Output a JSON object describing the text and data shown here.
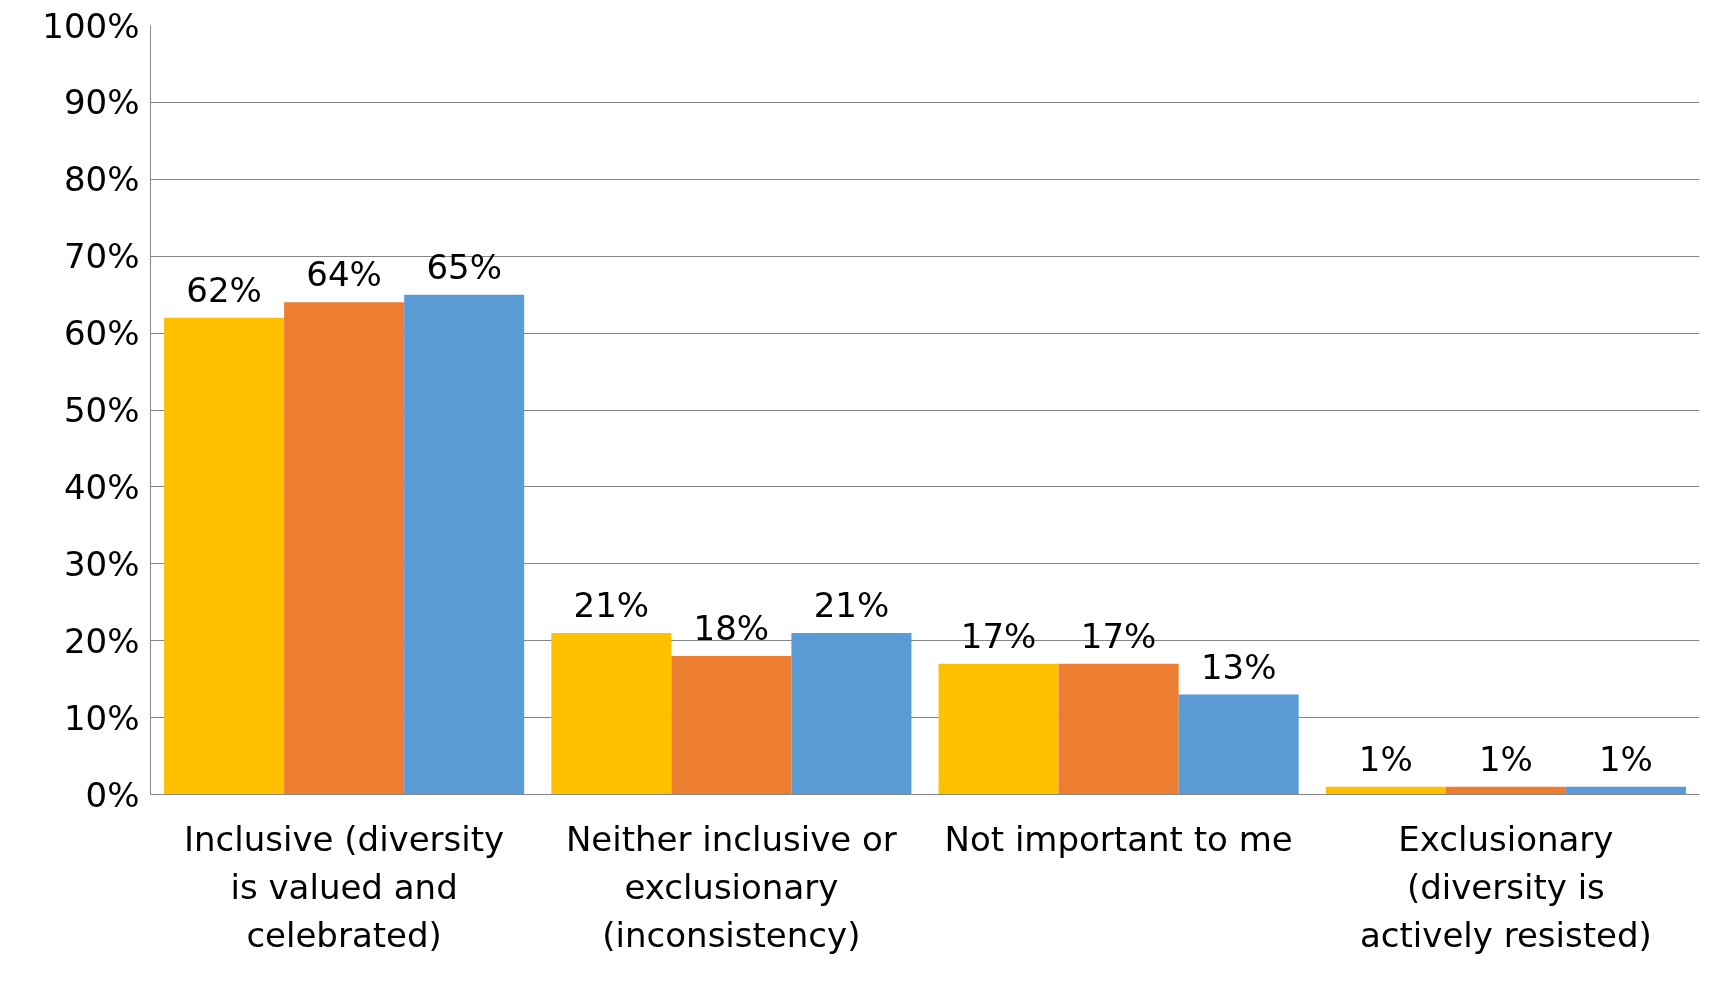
{
  "chart_data": {
    "type": "bar",
    "categories": [
      "Inclusive (diversity is valued and celebrated)",
      "Neither inclusive or exclusionary (inconsistency)",
      "Not important to me",
      "Exclusionary (diversity is actively resisted)"
    ],
    "series": [
      {
        "color": "#ffc000",
        "values": [
          62,
          21,
          17,
          1
        ],
        "value_labels": [
          "62%",
          "21%",
          "17%",
          "1%"
        ]
      },
      {
        "color": "#ed7d31",
        "values": [
          64,
          18,
          17,
          1
        ],
        "value_labels": [
          "64%",
          "18%",
          "17%",
          "1%"
        ]
      },
      {
        "color": "#5b9bd5",
        "values": [
          65,
          21,
          13,
          1
        ],
        "value_labels": [
          "65%",
          "21%",
          "13%",
          "1%"
        ]
      }
    ],
    "ylim": [
      0,
      100
    ],
    "yticks": [
      {
        "value": 0,
        "label": "0%"
      },
      {
        "value": 10,
        "label": "10%"
      },
      {
        "value": 20,
        "label": "20%"
      },
      {
        "value": 30,
        "label": "30%"
      },
      {
        "value": 40,
        "label": "40%"
      },
      {
        "value": 50,
        "label": "50%"
      },
      {
        "value": 60,
        "label": "60%"
      },
      {
        "value": 70,
        "label": "70%"
      },
      {
        "value": 80,
        "label": "80%"
      },
      {
        "value": 90,
        "label": "90%"
      },
      {
        "value": 100,
        "label": "100%"
      }
    ],
    "grid": "y"
  }
}
